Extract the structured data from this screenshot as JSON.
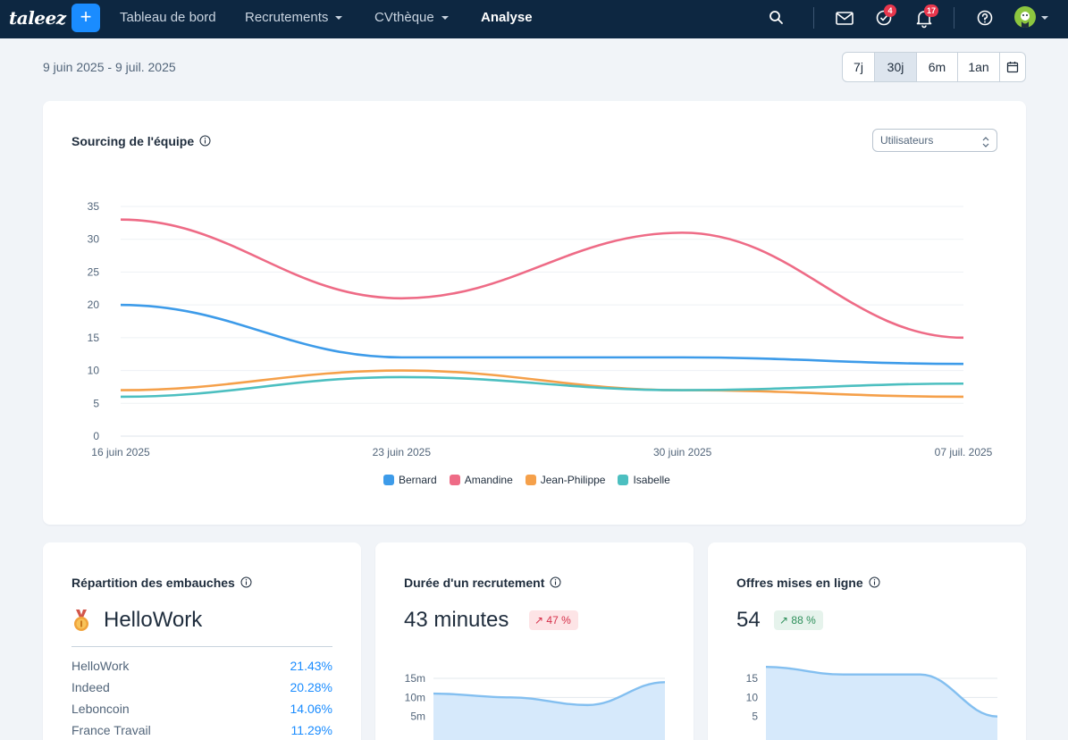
{
  "app": {
    "logo": "taleez",
    "plus_label": "+",
    "nav": [
      {
        "label": "Tableau de bord",
        "dropdown": false,
        "active": false
      },
      {
        "label": "Recrutements",
        "dropdown": true,
        "active": false
      },
      {
        "label": "CVthèque",
        "dropdown": true,
        "active": false
      },
      {
        "label": "Analyse",
        "dropdown": false,
        "active": true
      }
    ],
    "icons": [
      "search-icon",
      "mail-icon",
      "tasks-icon",
      "bell-icon",
      "help-icon",
      "avatar"
    ],
    "badges": {
      "tasks": "4",
      "notifications": "17"
    }
  },
  "period": {
    "range_text": "9 juin 2025 - 9 juil. 2025",
    "options": [
      "7j",
      "30j",
      "6m",
      "1an"
    ],
    "selected": "30j"
  },
  "sourcing_card": {
    "title": "Sourcing de l'équipe",
    "select_value": "Utilisateurs"
  },
  "colors": {
    "accent": "#1a8cff",
    "topbar": "#0d2741",
    "bernard": "#3d9be9",
    "amandine": "#ee6b86",
    "jean_philippe": "#f5a04a",
    "isabelle": "#4cbfc0"
  },
  "chart_data": [
    {
      "type": "line",
      "categories": [
        "16 juin 2025",
        "23 juin 2025",
        "30 juin 2025",
        "07 juil. 2025"
      ],
      "ylim": [
        0,
        35
      ],
      "yticks": [
        0,
        5,
        10,
        15,
        20,
        25,
        30,
        35
      ],
      "legend": "bottom",
      "grid": true,
      "series": [
        {
          "name": "Bernard",
          "values": [
            20,
            12,
            12,
            11
          ]
        },
        {
          "name": "Amandine",
          "values": [
            33,
            21,
            31,
            15
          ]
        },
        {
          "name": "Jean-Philippe",
          "values": [
            7,
            10,
            7,
            6
          ]
        },
        {
          "name": "Isabelle",
          "values": [
            6,
            9,
            7,
            8
          ]
        }
      ]
    },
    {
      "type": "area",
      "yticks": [
        "5m",
        "10m",
        "15m"
      ],
      "values_minutes": [
        11,
        10,
        8,
        14
      ]
    },
    {
      "type": "area",
      "yticks": [
        "5",
        "10",
        "15"
      ],
      "values": [
        18,
        16,
        16,
        5
      ]
    }
  ],
  "repartition_card": {
    "title": "Répartition des embauches",
    "top_source": "HelloWork",
    "rows": [
      {
        "name": "HelloWork",
        "pct": "21.43%"
      },
      {
        "name": "Indeed",
        "pct": "20.28%"
      },
      {
        "name": "Leboncoin",
        "pct": "14.06%"
      },
      {
        "name": "France Travail",
        "pct": "11.29%"
      }
    ]
  },
  "duree_card": {
    "title": "Durée d'un recrutement",
    "value": "43 minutes",
    "delta": "47 %"
  },
  "offres_card": {
    "title": "Offres mises en ligne",
    "value": "54",
    "delta": "88 %"
  }
}
